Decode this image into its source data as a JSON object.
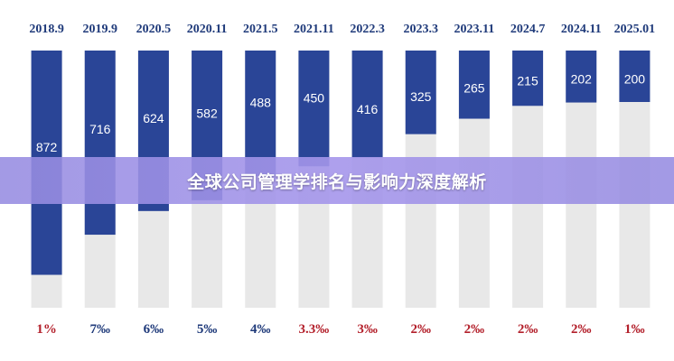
{
  "banner": {
    "title": "全球公司管理学排名与影响力深度解析"
  },
  "colors": {
    "bar": "#2a4597",
    "track": "#e8e8e8",
    "date": "#1f3a7a",
    "rate_blue": "#1f3a7a",
    "rate_red": "#b3202b",
    "value_text": "#ffffff"
  },
  "chart_data": {
    "type": "bar",
    "categories": [
      "2018.9",
      "2019.9",
      "2020.5",
      "2020.11",
      "2021.5",
      "2021.11",
      "2022.3",
      "2023.3",
      "2023.11",
      "2024.7",
      "2024.11",
      "2025.01"
    ],
    "values": [
      872,
      716,
      624,
      582,
      488,
      450,
      416,
      325,
      265,
      215,
      202,
      200
    ],
    "value_labels": [
      "872",
      "716",
      "624",
      "582",
      "488",
      "450",
      "416",
      "325",
      "265",
      "215",
      "202",
      "200"
    ],
    "bottom_labels": [
      "1%",
      "7‰",
      "6‰",
      "5‰",
      "4‰",
      "3.3‰",
      "3‰",
      "2‰",
      "2‰",
      "2‰",
      "2‰",
      "1‰"
    ],
    "bottom_label_colors": [
      "red",
      "blue",
      "blue",
      "blue",
      "blue",
      "red",
      "red",
      "red",
      "red",
      "red",
      "red",
      "red"
    ],
    "ylim": [
      0,
      1000
    ],
    "grid": false,
    "legend": "none"
  }
}
